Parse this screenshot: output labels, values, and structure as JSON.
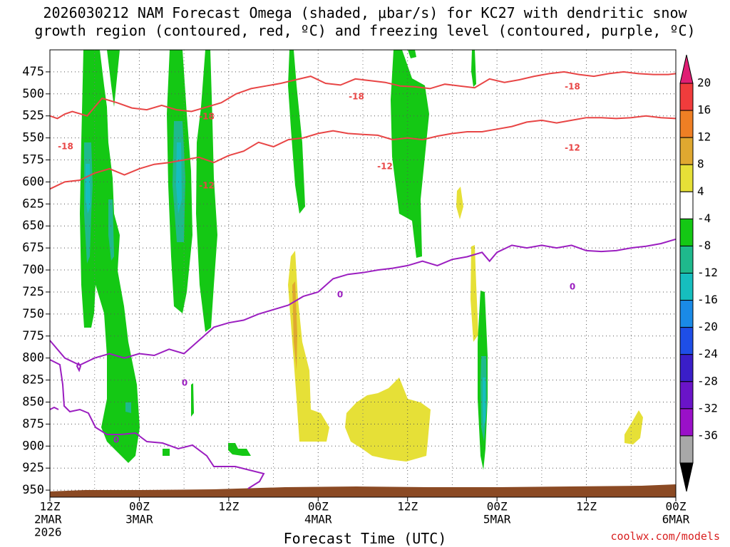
{
  "title_line1": "2026030212 NAM Forecast Omega (shaded, μbar/s) for KC27 with dendritic snow",
  "title_line2": "growth region (contoured, red, ºC) and freezing level (contoured, purple, ºC)",
  "credit": "coolwx.com/models",
  "chart_data": {
    "type": "time-height section",
    "xlabel": "Forecast Time (UTC)",
    "x_ticks": [
      {
        "hours": 0,
        "lines": [
          "12Z",
          "2MAR",
          "2026"
        ]
      },
      {
        "hours": 12,
        "lines": [
          "00Z",
          "3MAR"
        ]
      },
      {
        "hours": 24,
        "lines": [
          "12Z"
        ]
      },
      {
        "hours": 36,
        "lines": [
          "00Z",
          "4MAR"
        ]
      },
      {
        "hours": 48,
        "lines": [
          "12Z"
        ]
      },
      {
        "hours": 60,
        "lines": [
          "00Z",
          "5MAR"
        ]
      },
      {
        "hours": 72,
        "lines": [
          "12Z"
        ]
      },
      {
        "hours": 84,
        "lines": [
          "00Z",
          "6MAR"
        ]
      }
    ],
    "x_range_hours": [
      0,
      84
    ],
    "y_pressure_ticks": [
      475,
      500,
      525,
      550,
      575,
      600,
      625,
      650,
      675,
      700,
      725,
      750,
      775,
      800,
      825,
      850,
      875,
      900,
      925,
      950
    ],
    "y_range_hpa": [
      450,
      958
    ],
    "grid": true,
    "colorbar": {
      "labels": [
        "20",
        "16",
        "12",
        "8",
        "4",
        "-4",
        "-8",
        "-12",
        "-16",
        "-20",
        "-24",
        "-28",
        "-32",
        "-36"
      ],
      "colors": [
        "#e01e74",
        "#f03c3c",
        "#ef7f24",
        "#e0a830",
        "#e6e037",
        "#ffffff",
        "#14c814",
        "#1fb98c",
        "#16bebe",
        "#1a8ae6",
        "#1e4ee6",
        "#3a1ec8",
        "#6a14c8",
        "#9a10c8",
        "#a8a8a8",
        "#000000"
      ],
      "end_triangles": [
        "#e01e74",
        "#000000"
      ]
    },
    "contour_labels": [
      {
        "text": "-18",
        "color": "#e84545"
      },
      {
        "text": "-18",
        "color": "#e84545"
      },
      {
        "text": "-18",
        "color": "#e84545"
      },
      {
        "text": "-18",
        "color": "#e84545"
      },
      {
        "text": "-12",
        "color": "#e84545"
      },
      {
        "text": "-12",
        "color": "#e84545"
      },
      {
        "text": "-12",
        "color": "#e84545"
      },
      {
        "text": "0",
        "color": "#9b1ec0"
      },
      {
        "text": "0",
        "color": "#9b1ec0"
      },
      {
        "text": "0",
        "color": "#9b1ec0"
      },
      {
        "text": "0",
        "color": "#9b1ec0"
      }
    ],
    "series": [
      {
        "name": "-18",
        "color": "#e84545",
        "points": [
          [
            0,
            525
          ],
          [
            1,
            528
          ],
          [
            2,
            523
          ],
          [
            3,
            520
          ],
          [
            5,
            525
          ],
          [
            7,
            505
          ],
          [
            9,
            510
          ],
          [
            11,
            516
          ],
          [
            13,
            518
          ],
          [
            15,
            513
          ],
          [
            17,
            518
          ],
          [
            19,
            520
          ],
          [
            21,
            515
          ],
          [
            23,
            510
          ],
          [
            25,
            500
          ],
          [
            27,
            494
          ],
          [
            29,
            491
          ],
          [
            31,
            488
          ],
          [
            33,
            484
          ],
          [
            35,
            480
          ],
          [
            37,
            488
          ],
          [
            39,
            490
          ],
          [
            41,
            483
          ],
          [
            43,
            485
          ],
          [
            45,
            487
          ],
          [
            47,
            491
          ],
          [
            49,
            492
          ],
          [
            51,
            494
          ],
          [
            53,
            489
          ],
          [
            55,
            491
          ],
          [
            57,
            493
          ],
          [
            59,
            483
          ],
          [
            61,
            487
          ],
          [
            63,
            484
          ],
          [
            65,
            480
          ],
          [
            67,
            477
          ],
          [
            69,
            475
          ],
          [
            71,
            478
          ],
          [
            73,
            480
          ],
          [
            75,
            477
          ],
          [
            77,
            475
          ],
          [
            79,
            477
          ],
          [
            81,
            478
          ],
          [
            83,
            478
          ],
          [
            84,
            477
          ]
        ]
      },
      {
        "name": "-12",
        "color": "#e84545",
        "points": [
          [
            0,
            608
          ],
          [
            2,
            600
          ],
          [
            4,
            598
          ],
          [
            6,
            590
          ],
          [
            8,
            585
          ],
          [
            10,
            592
          ],
          [
            12,
            585
          ],
          [
            14,
            580
          ],
          [
            16,
            578
          ],
          [
            18,
            575
          ],
          [
            20,
            572
          ],
          [
            22,
            578
          ],
          [
            24,
            570
          ],
          [
            26,
            565
          ],
          [
            28,
            555
          ],
          [
            30,
            560
          ],
          [
            32,
            552
          ],
          [
            34,
            550
          ],
          [
            36,
            545
          ],
          [
            38,
            542
          ],
          [
            40,
            545
          ],
          [
            42,
            546
          ],
          [
            44,
            547
          ],
          [
            46,
            552
          ],
          [
            48,
            550
          ],
          [
            50,
            552
          ],
          [
            52,
            548
          ],
          [
            54,
            545
          ],
          [
            56,
            543
          ],
          [
            58,
            543
          ],
          [
            60,
            540
          ],
          [
            62,
            537
          ],
          [
            64,
            532
          ],
          [
            66,
            530
          ],
          [
            68,
            533
          ],
          [
            70,
            530
          ],
          [
            72,
            527
          ],
          [
            74,
            527
          ],
          [
            76,
            528
          ],
          [
            78,
            527
          ],
          [
            80,
            525
          ],
          [
            82,
            527
          ],
          [
            84,
            528
          ]
        ]
      },
      {
        "name": "0",
        "color": "#9b1ec0",
        "points": [
          [
            0,
            780
          ],
          [
            2,
            800
          ],
          [
            4,
            808
          ],
          [
            6,
            800
          ],
          [
            8,
            795
          ],
          [
            10,
            800
          ],
          [
            12,
            795
          ],
          [
            14,
            797
          ],
          [
            16,
            790
          ],
          [
            18,
            795
          ],
          [
            20,
            780
          ],
          [
            22,
            765
          ],
          [
            24,
            760
          ],
          [
            26,
            757
          ],
          [
            28,
            750
          ],
          [
            30,
            745
          ],
          [
            32,
            740
          ],
          [
            34,
            730
          ],
          [
            36,
            725
          ],
          [
            38,
            710
          ],
          [
            40,
            705
          ],
          [
            42,
            703
          ],
          [
            44,
            700
          ],
          [
            46,
            698
          ],
          [
            48,
            695
          ],
          [
            50,
            690
          ],
          [
            52,
            695
          ],
          [
            54,
            688
          ],
          [
            56,
            685
          ],
          [
            58,
            680
          ],
          [
            59,
            690
          ],
          [
            60,
            680
          ],
          [
            62,
            672
          ],
          [
            64,
            675
          ],
          [
            66,
            672
          ],
          [
            68,
            675
          ],
          [
            70,
            672
          ],
          [
            72,
            678
          ],
          [
            74,
            679
          ],
          [
            76,
            678
          ],
          [
            78,
            675
          ],
          [
            80,
            673
          ],
          [
            82,
            670
          ],
          [
            84,
            665
          ]
        ]
      }
    ]
  }
}
